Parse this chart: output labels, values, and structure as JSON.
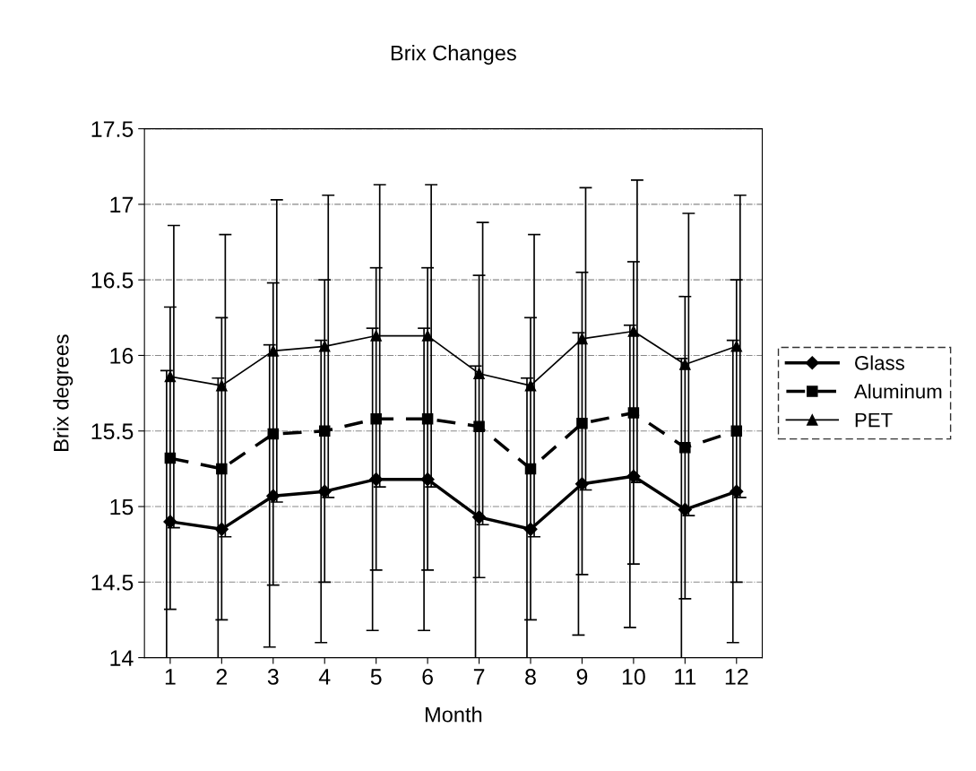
{
  "chart_data": {
    "type": "line",
    "title": "Brix Changes",
    "xlabel": "Month",
    "ylabel": "Brix degrees",
    "categories": [
      "1",
      "2",
      "3",
      "4",
      "5",
      "6",
      "7",
      "8",
      "9",
      "10",
      "11",
      "12"
    ],
    "series": [
      {
        "name": "Glass",
        "color": "#000000",
        "marker": "diamond",
        "line_style": "solid",
        "values": [
          14.9,
          14.85,
          15.07,
          15.1,
          15.18,
          15.18,
          14.93,
          14.85,
          15.15,
          15.2,
          14.98,
          15.1
        ],
        "errors": [
          1,
          1,
          1,
          1,
          1,
          1,
          1,
          1,
          1,
          1,
          1,
          1
        ]
      },
      {
        "name": "Aluminum",
        "color": "#000000",
        "marker": "square",
        "line_style": "dashed",
        "values": [
          15.32,
          15.25,
          15.48,
          15.5,
          15.58,
          15.58,
          15.53,
          15.25,
          15.55,
          15.62,
          15.39,
          15.5
        ],
        "errors": [
          1,
          1,
          1,
          1,
          1,
          1,
          1,
          1,
          1,
          1,
          1,
          1
        ]
      },
      {
        "name": "PET",
        "color": "#000000",
        "marker": "triangle",
        "line_style": "solid",
        "values": [
          15.86,
          15.8,
          16.03,
          16.06,
          16.13,
          16.13,
          15.88,
          15.8,
          16.11,
          16.16,
          15.94,
          16.06
        ],
        "errors": [
          1,
          1,
          1,
          1,
          1,
          1,
          1,
          1,
          1,
          1,
          1,
          1
        ]
      }
    ],
    "ylim": [
      14,
      17.5
    ],
    "yticks": [
      14,
      14.5,
      15,
      15.5,
      16,
      16.5,
      17,
      17.5
    ],
    "grid": "y",
    "legend": "right"
  }
}
